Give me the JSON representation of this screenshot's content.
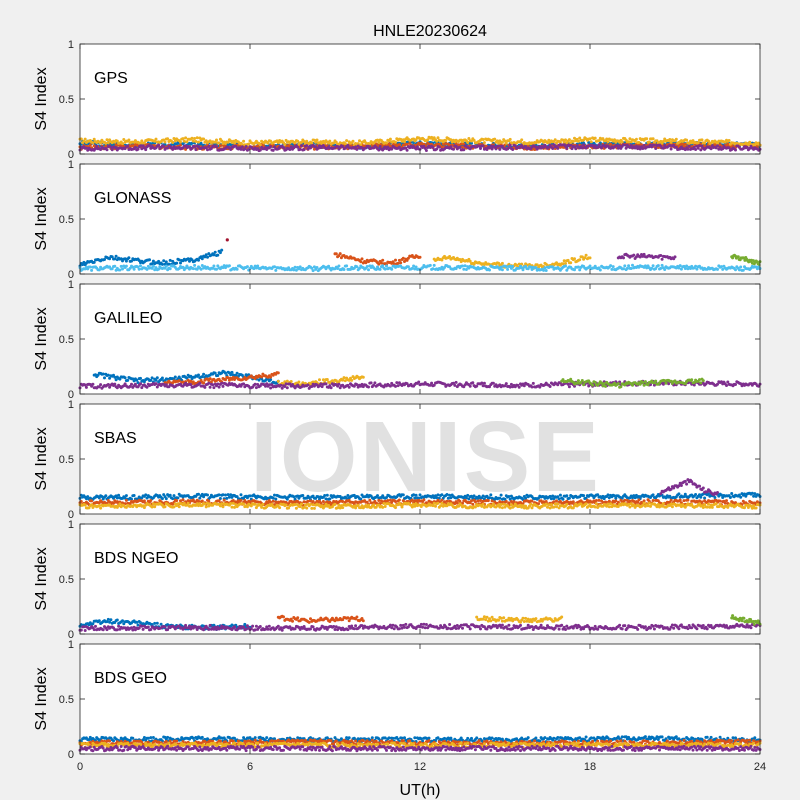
{
  "figure": {
    "title": "HNLE20230624",
    "xlabel": "UT(h)",
    "watermark": "IONISE"
  },
  "chart_data": {
    "type": "scatter",
    "title": "HNLE20230624",
    "xlabel": "UT(h)",
    "xlim": [
      0,
      24
    ],
    "xticks": [
      0,
      6,
      12,
      18,
      24
    ],
    "ylim": [
      0,
      1
    ],
    "yticks": [
      0,
      0.5,
      1
    ],
    "grid": false,
    "colors": [
      "#0072bd",
      "#d95319",
      "#edb120",
      "#7e2f8e",
      "#77ac30",
      "#4dbeee",
      "#a2142f"
    ],
    "panels": [
      {
        "label": "GPS",
        "ylabel": "S4 Index",
        "series": [
          {
            "x": [
              0,
              2,
              4,
              6,
              8,
              10,
              12,
              14,
              16,
              18,
              20,
              22,
              24
            ],
            "y": [
              0.1,
              0.08,
              0.09,
              0.07,
              0.08,
              0.07,
              0.1,
              0.08,
              0.07,
              0.09,
              0.08,
              0.09,
              0.08
            ]
          },
          {
            "x": [
              0,
              2,
              4,
              6,
              8,
              10,
              12,
              14,
              16,
              18,
              20,
              22,
              24
            ],
            "y": [
              0.06,
              0.07,
              0.06,
              0.07,
              0.06,
              0.07,
              0.08,
              0.07,
              0.06,
              0.07,
              0.07,
              0.08,
              0.07
            ]
          },
          {
            "x": [
              0,
              2,
              4,
              6,
              8,
              10,
              12,
              14,
              16,
              18,
              20,
              22,
              24
            ],
            "y": [
              0.12,
              0.11,
              0.13,
              0.1,
              0.11,
              0.1,
              0.14,
              0.12,
              0.11,
              0.13,
              0.12,
              0.11,
              0.1
            ]
          },
          {
            "x": [
              0,
              3,
              6,
              9,
              12,
              15,
              18,
              21,
              24
            ],
            "y": [
              0.05,
              0.06,
              0.05,
              0.06,
              0.05,
              0.06,
              0.07,
              0.06,
              0.05
            ]
          }
        ]
      },
      {
        "label": "GLONASS",
        "ylabel": "S4 Index",
        "series": [
          {
            "x": [
              0,
              1,
              2,
              3,
              4,
              5
            ],
            "y": [
              0.08,
              0.15,
              0.12,
              0.1,
              0.13,
              0.2
            ]
          },
          {
            "x": [
              9,
              10,
              11,
              12
            ],
            "y": [
              0.18,
              0.12,
              0.1,
              0.17
            ]
          },
          {
            "x": [
              12.5,
              13,
              14,
              15,
              16,
              17,
              18
            ],
            "y": [
              0.12,
              0.15,
              0.1,
              0.08,
              0.07,
              0.1,
              0.16
            ]
          },
          {
            "x": [
              19,
              20,
              21
            ],
            "y": [
              0.16,
              0.16,
              0.15
            ]
          },
          {
            "x": [
              23,
              23.5,
              24
            ],
            "y": [
              0.16,
              0.13,
              0.1
            ]
          },
          {
            "x": [
              0,
              4,
              8,
              12,
              16,
              20,
              24
            ],
            "y": [
              0.05,
              0.06,
              0.05,
              0.06,
              0.05,
              0.06,
              0.05
            ]
          },
          {
            "x": [
              5.2
            ],
            "y": [
              0.31
            ]
          }
        ]
      },
      {
        "label": "GALILEO",
        "ylabel": "S4 Index",
        "series": [
          {
            "x": [
              0.5,
              2,
              3.5,
              5,
              6,
              7
            ],
            "y": [
              0.18,
              0.12,
              0.14,
              0.19,
              0.16,
              0.1
            ]
          },
          {
            "x": [
              3,
              4,
              5,
              6,
              7
            ],
            "y": [
              0.1,
              0.11,
              0.13,
              0.15,
              0.18
            ]
          },
          {
            "x": [
              7,
              8,
              9,
              10
            ],
            "y": [
              0.1,
              0.1,
              0.12,
              0.15
            ]
          },
          {
            "x": [
              0,
              4,
              8,
              12,
              16,
              20,
              24
            ],
            "y": [
              0.07,
              0.08,
              0.07,
              0.09,
              0.08,
              0.1,
              0.09
            ]
          },
          {
            "x": [
              17,
              18,
              19,
              20,
              21,
              22
            ],
            "y": [
              0.12,
              0.1,
              0.08,
              0.1,
              0.11,
              0.12
            ]
          }
        ]
      },
      {
        "label": "SBAS",
        "ylabel": "S4 Index",
        "series": [
          {
            "x": [
              0,
              4,
              8,
              12,
              16,
              20,
              24
            ],
            "y": [
              0.15,
              0.16,
              0.15,
              0.16,
              0.15,
              0.16,
              0.17
            ]
          },
          {
            "x": [
              0,
              4,
              8,
              12,
              16,
              20,
              24
            ],
            "y": [
              0.1,
              0.11,
              0.1,
              0.11,
              0.1,
              0.11,
              0.1
            ]
          },
          {
            "x": [
              0,
              4,
              8,
              12,
              16,
              20,
              24
            ],
            "y": [
              0.07,
              0.08,
              0.07,
              0.08,
              0.07,
              0.08,
              0.07
            ]
          },
          {
            "x": [
              20.5,
              21,
              21.5,
              22,
              22.5
            ],
            "y": [
              0.2,
              0.25,
              0.3,
              0.22,
              0.18
            ]
          }
        ]
      },
      {
        "label": "BDS NGEO",
        "ylabel": "S4 Index",
        "series": [
          {
            "x": [
              0,
              1,
              2,
              3,
              4,
              5,
              6
            ],
            "y": [
              0.08,
              0.12,
              0.1,
              0.07,
              0.06,
              0.06,
              0.07
            ]
          },
          {
            "x": [
              7,
              8,
              9,
              10
            ],
            "y": [
              0.15,
              0.12,
              0.13,
              0.14
            ]
          },
          {
            "x": [
              14,
              15,
              16,
              17
            ],
            "y": [
              0.14,
              0.13,
              0.12,
              0.14
            ]
          },
          {
            "x": [
              0,
              4,
              8,
              12,
              16,
              20,
              24
            ],
            "y": [
              0.05,
              0.06,
              0.05,
              0.07,
              0.06,
              0.06,
              0.07
            ]
          },
          {
            "x": [
              23,
              23.5,
              24
            ],
            "y": [
              0.15,
              0.12,
              0.1
            ]
          }
        ]
      },
      {
        "label": "BDS GEO",
        "ylabel": "S4 Index",
        "series": [
          {
            "x": [
              0,
              4,
              8,
              12,
              16,
              20,
              24
            ],
            "y": [
              0.13,
              0.14,
              0.13,
              0.13,
              0.13,
              0.14,
              0.13
            ]
          },
          {
            "x": [
              0,
              4,
              8,
              12,
              16,
              20,
              24
            ],
            "y": [
              0.1,
              0.1,
              0.11,
              0.1,
              0.1,
              0.1,
              0.11
            ]
          },
          {
            "x": [
              0,
              4,
              8,
              12,
              16,
              20,
              24
            ],
            "y": [
              0.08,
              0.08,
              0.08,
              0.08,
              0.08,
              0.08,
              0.08
            ]
          },
          {
            "x": [
              0,
              4,
              8,
              12,
              16,
              20,
              24
            ],
            "y": [
              0.05,
              0.05,
              0.05,
              0.05,
              0.05,
              0.05,
              0.05
            ]
          }
        ]
      }
    ]
  }
}
